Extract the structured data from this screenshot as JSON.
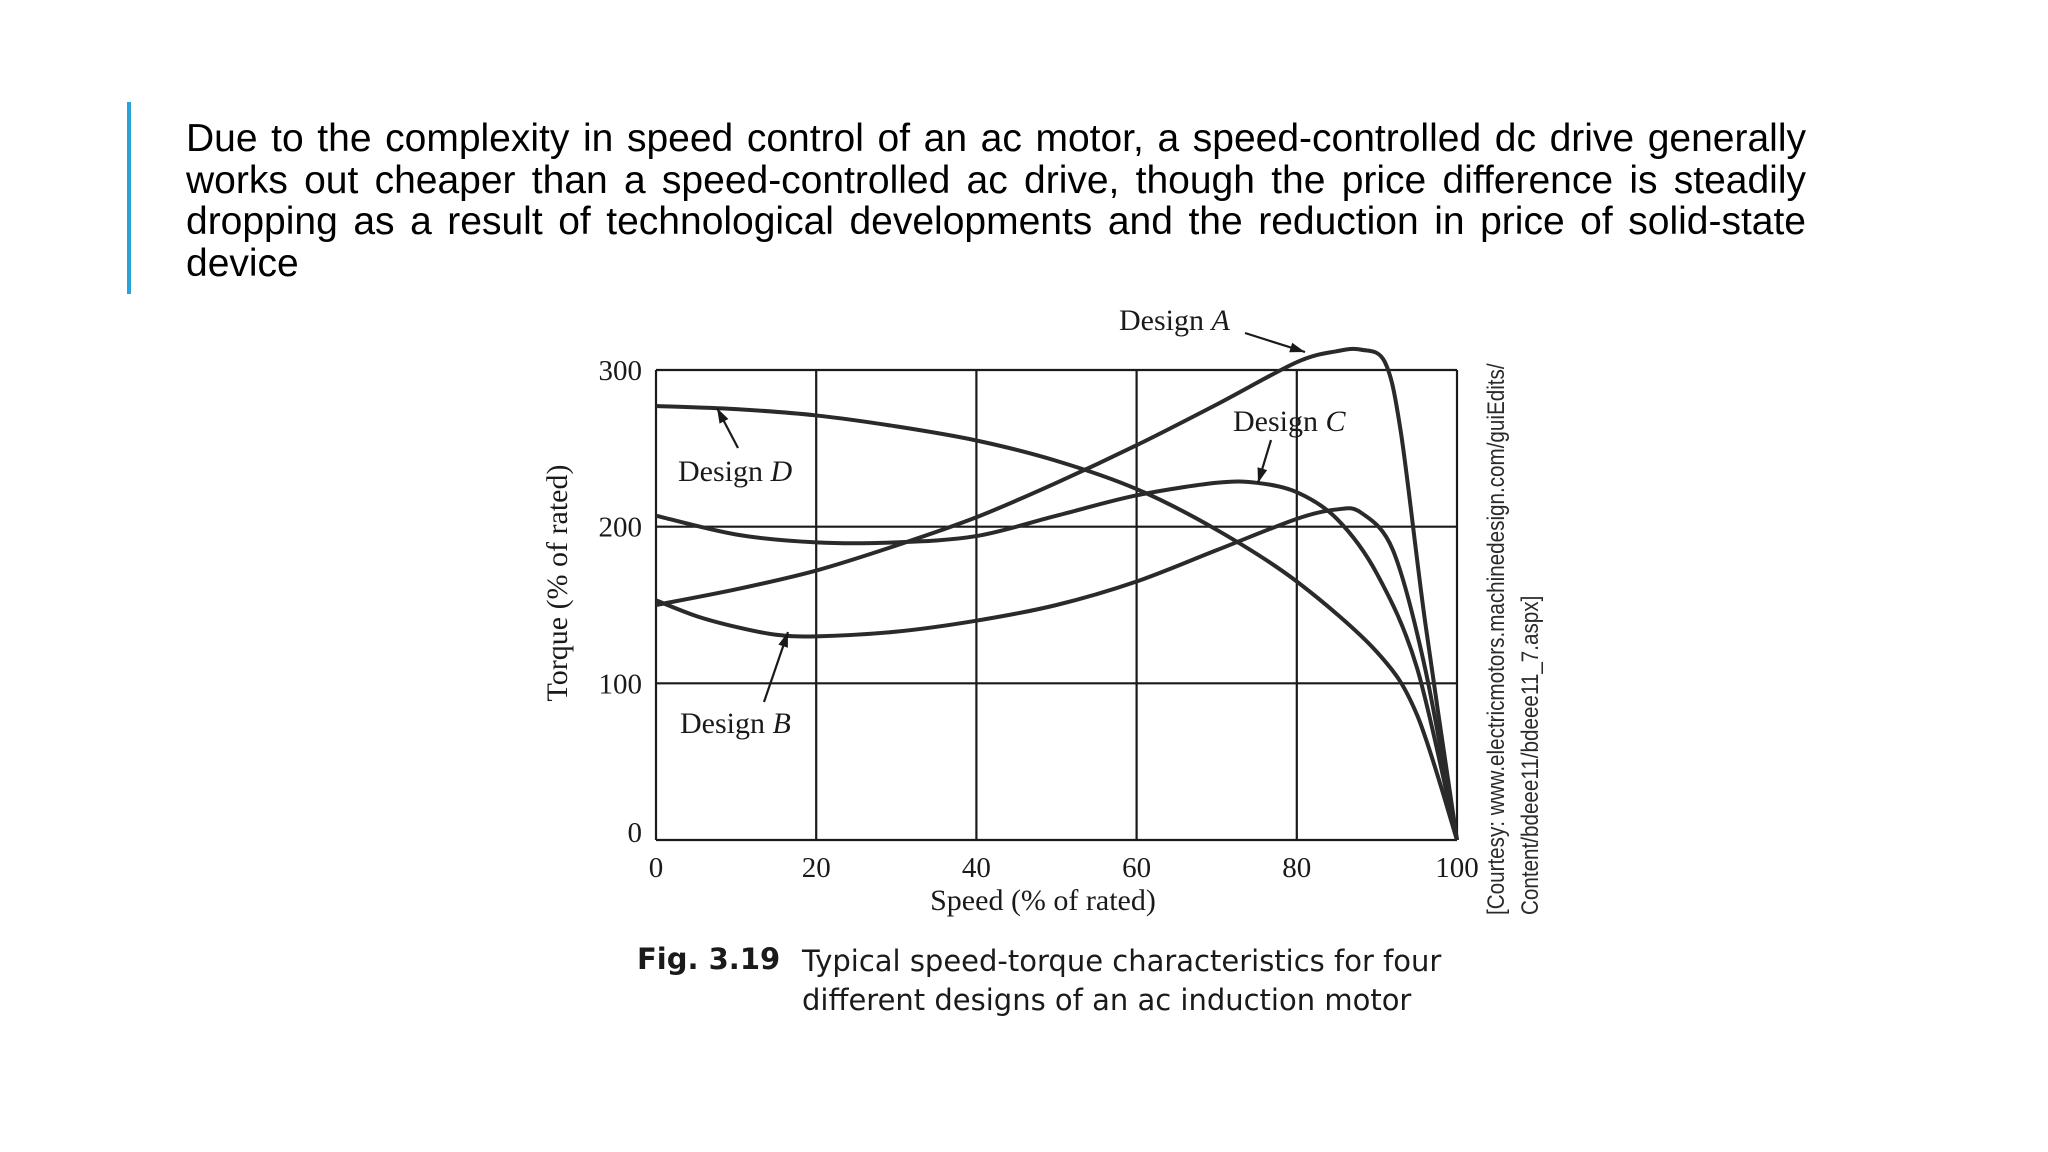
{
  "paragraph": "Due to the complexity in speed control of an ac motor, a speed-controlled dc drive generally works out cheaper than a speed-controlled ac drive, though the price difference is steadily dropping as a result of technological developments and the reduction in price of solid-state device",
  "colors": {
    "accent_bar": "#29a3d8",
    "curves": "#2a2a2a",
    "grid": "#1a1a1a"
  },
  "caption": {
    "number": "Fig. 3.19",
    "text": "Typical speed-torque characteristics for four different designs of an ac induction motor"
  },
  "courtesy": {
    "line1": "[Courtesy: www.electricmotors.machinedesign.com/guiEdits/",
    "line2": "Content/bdeee11/bdeee11_7.aspx]"
  },
  "chart_data": {
    "type": "line",
    "xlabel": "Speed (% of rated)",
    "ylabel": "Torque (% of rated)",
    "xlim": [
      0,
      100
    ],
    "ylim": [
      0,
      300
    ],
    "xticks": [
      0,
      20,
      40,
      60,
      80,
      100
    ],
    "yticks": [
      0,
      100,
      200,
      300
    ],
    "grid": true,
    "series": [
      {
        "name": "Design A",
        "label_prefix": "Design ",
        "label_letter": "A",
        "x": [
          0,
          10,
          20,
          30,
          40,
          50,
          60,
          70,
          80,
          85,
          88,
          91,
          93,
          96,
          100
        ],
        "y": [
          150,
          160,
          172,
          188,
          206,
          228,
          252,
          278,
          305,
          312,
          313,
          305,
          260,
          140,
          0
        ]
      },
      {
        "name": "Design B",
        "label_prefix": "Design ",
        "label_letter": "B",
        "x": [
          0,
          5,
          10,
          15,
          20,
          30,
          40,
          50,
          60,
          70,
          80,
          85,
          88,
          92,
          96,
          100
        ],
        "y": [
          153,
          143,
          136,
          131,
          130,
          133,
          140,
          150,
          165,
          185,
          205,
          211,
          209,
          185,
          110,
          0
        ]
      },
      {
        "name": "Design C",
        "label_prefix": "Design ",
        "label_letter": "C",
        "x": [
          0,
          10,
          20,
          30,
          40,
          50,
          60,
          70,
          75,
          80,
          85,
          90,
          95,
          100
        ],
        "y": [
          207,
          195,
          190,
          190,
          194,
          207,
          220,
          228,
          228,
          222,
          205,
          170,
          110,
          0
        ]
      },
      {
        "name": "Design D",
        "label_prefix": "Design ",
        "label_letter": "D",
        "x": [
          0,
          10,
          20,
          30,
          40,
          50,
          60,
          70,
          80,
          90,
          95,
          100
        ],
        "y": [
          277,
          275,
          271,
          264,
          255,
          242,
          224,
          198,
          165,
          120,
          80,
          0
        ]
      }
    ]
  }
}
